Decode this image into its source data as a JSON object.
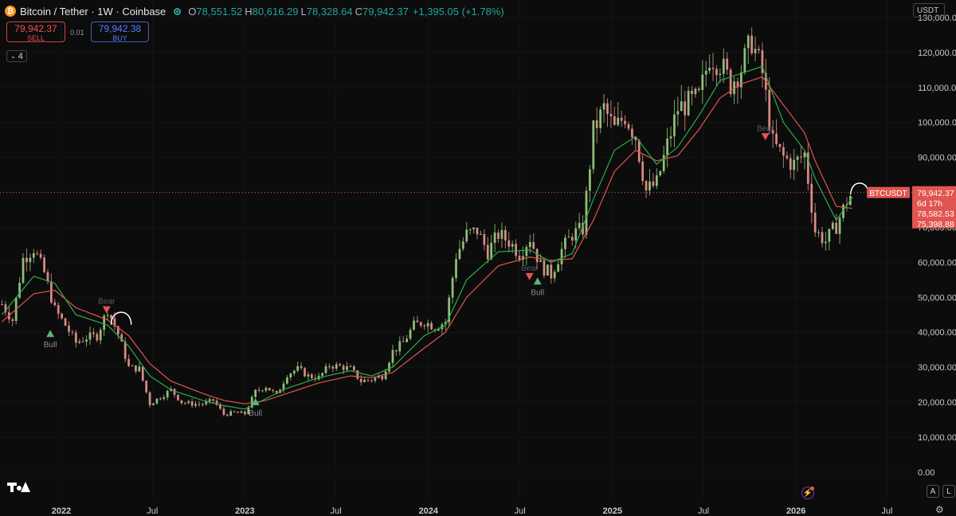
{
  "header": {
    "coin_icon": "bitcoin-icon",
    "symbol": "Bitcoin / Tether · 1W · Coinbase",
    "market_status_icon": "market-open-dot-icon",
    "open_label": "O",
    "open_value": "78,551.52",
    "high_label": "H",
    "high_value": "80,616.29",
    "low_label": "L",
    "low_value": "78,328.64",
    "close_label": "C",
    "close_value": "79,942.37",
    "change": "+1,395.05 (+1.78%)"
  },
  "trade": {
    "sell_price": "79,942.37",
    "sell_label": "SELL",
    "spread": "0.01",
    "buy_price": "79,942.38",
    "buy_label": "BUY"
  },
  "indicators": {
    "count": "4",
    "icon": "chevron-down-icon"
  },
  "price_axis": {
    "currency": "USDT"
  },
  "labels": {
    "symbol_tag": "BTCUSDT",
    "last_price": "79,942.37",
    "countdown": "6d 17h",
    "ma_fast": "78,582.53",
    "ma_slow": "75,398.88",
    "bull": "Bull",
    "bear": "Bear"
  },
  "controls": {
    "auto": "A",
    "log": "L",
    "settings_icon": "gear-icon",
    "logo_icon": "tradingview-logo-icon",
    "alert_icon": "lightning-icon"
  },
  "colors": {
    "up": "#8fbf7a",
    "down": "#d98a84",
    "ma_fast": "#26b04d",
    "ma_slow": "#e0554f",
    "background": "#0c0c0c",
    "price_line": "#ef5350"
  },
  "chart_data": {
    "type": "candlestick",
    "interval": "1W",
    "ylabel": "USDT",
    "ylim": [
      -8000,
      135000
    ],
    "y_ticks": [
      0,
      10000,
      20000,
      30000,
      40000,
      50000,
      60000,
      70000,
      80000,
      90000,
      100000,
      110000,
      120000,
      130000
    ],
    "y_tick_labels": [
      "0.00",
      "10,000.00",
      "20,000.00",
      "30,000.00",
      "40,000.00",
      "50,000.00",
      "60,000.00",
      "70,000.00",
      "80,000.00",
      "90,000.00",
      "100,000.00",
      "110,000.00",
      "120,000.00",
      "130,000.00"
    ],
    "x_tick_labels": [
      "2022",
      "Jul",
      "2023",
      "Jul",
      "2024",
      "Jul",
      "2025",
      "Jul",
      "2026",
      "Jul"
    ],
    "x_tick_dates": [
      "2022-01-01",
      "2022-07-01",
      "2023-01-01",
      "2023-07-01",
      "2024-01-01",
      "2024-07-01",
      "2025-01-01",
      "2025-07-01",
      "2026-01-01",
      "2026-07-01"
    ],
    "x_range": [
      "2021-09-01",
      "2026-08-20"
    ],
    "close_series": [
      [
        "2021-09-05",
        48000
      ],
      [
        "2021-09-26",
        43500
      ],
      [
        "2021-10-17",
        61000
      ],
      [
        "2021-11-07",
        64000
      ],
      [
        "2021-11-28",
        57000
      ],
      [
        "2021-12-19",
        46500
      ],
      [
        "2022-01-09",
        42000
      ],
      [
        "2022-01-30",
        37000
      ],
      [
        "2022-02-20",
        38500
      ],
      [
        "2022-03-13",
        39000
      ],
      [
        "2022-04-03",
        46500
      ],
      [
        "2022-04-24",
        39500
      ],
      [
        "2022-05-15",
        30000
      ],
      [
        "2022-06-05",
        29500
      ],
      [
        "2022-06-26",
        19500
      ],
      [
        "2022-07-17",
        21500
      ],
      [
        "2022-08-07",
        23500
      ],
      [
        "2022-08-28",
        20000
      ],
      [
        "2022-09-18",
        19500
      ],
      [
        "2022-10-09",
        19500
      ],
      [
        "2022-10-30",
        20500
      ],
      [
        "2022-11-20",
        16500
      ],
      [
        "2022-12-11",
        17000
      ],
      [
        "2023-01-01",
        16700
      ],
      [
        "2023-01-22",
        23000
      ],
      [
        "2023-02-12",
        24500
      ],
      [
        "2023-03-05",
        22000
      ],
      [
        "2023-03-26",
        28000
      ],
      [
        "2023-04-16",
        29500
      ],
      [
        "2023-05-07",
        27500
      ],
      [
        "2023-05-28",
        27000
      ],
      [
        "2023-06-18",
        30500
      ],
      [
        "2023-07-09",
        30200
      ],
      [
        "2023-07-30",
        29500
      ],
      [
        "2023-08-20",
        26000
      ],
      [
        "2023-09-10",
        26500
      ],
      [
        "2023-10-01",
        27500
      ],
      [
        "2023-10-22",
        34500
      ],
      [
        "2023-11-12",
        37000
      ],
      [
        "2023-12-03",
        42000
      ],
      [
        "2023-12-24",
        43000
      ],
      [
        "2024-01-14",
        41500
      ],
      [
        "2024-02-04",
        43000
      ],
      [
        "2024-02-25",
        62000
      ],
      [
        "2024-03-17",
        68000
      ],
      [
        "2024-04-07",
        69000
      ],
      [
        "2024-04-28",
        63000
      ],
      [
        "2024-05-19",
        68000
      ],
      [
        "2024-06-09",
        66000
      ],
      [
        "2024-06-30",
        62500
      ],
      [
        "2024-07-21",
        67000
      ],
      [
        "2024-08-11",
        59000
      ],
      [
        "2024-09-01",
        56500
      ],
      [
        "2024-09-22",
        63500
      ],
      [
        "2024-10-13",
        68000
      ],
      [
        "2024-11-03",
        69500
      ],
      [
        "2024-11-24",
        97500
      ],
      [
        "2024-12-15",
        104000
      ],
      [
        "2025-01-05",
        98000
      ],
      [
        "2025-01-26",
        102000
      ],
      [
        "2025-02-16",
        96000
      ],
      [
        "2025-03-09",
        80500
      ],
      [
        "2025-03-30",
        82500
      ],
      [
        "2025-04-20",
        93500
      ],
      [
        "2025-05-11",
        104000
      ],
      [
        "2025-06-01",
        105500
      ],
      [
        "2025-06-22",
        107000
      ],
      [
        "2025-07-13",
        119000
      ],
      [
        "2025-08-03",
        117000
      ],
      [
        "2025-08-24",
        111000
      ],
      [
        "2025-09-14",
        115500
      ],
      [
        "2025-10-05",
        123500
      ],
      [
        "2025-10-26",
        114000
      ],
      [
        "2025-11-16",
        94000
      ],
      [
        "2025-12-07",
        90000
      ],
      [
        "2025-12-28",
        88000
      ],
      [
        "2026-01-18",
        91000
      ],
      [
        "2026-02-08",
        69000
      ],
      [
        "2026-03-01",
        66000
      ],
      [
        "2026-03-22",
        70500
      ],
      [
        "2026-04-12",
        77500
      ],
      [
        "2026-04-23",
        79942.37
      ]
    ],
    "ma_fast_series": [
      [
        "2021-09-05",
        45000
      ],
      [
        "2021-11-07",
        56000
      ],
      [
        "2021-12-19",
        54000
      ],
      [
        "2022-01-30",
        45000
      ],
      [
        "2022-04-03",
        42000
      ],
      [
        "2022-05-15",
        36000
      ],
      [
        "2022-06-26",
        27500
      ],
      [
        "2022-08-07",
        23500
      ],
      [
        "2022-10-09",
        20500
      ],
      [
        "2022-11-20",
        19000
      ],
      [
        "2023-01-01",
        18000
      ],
      [
        "2023-02-12",
        21000
      ],
      [
        "2023-03-26",
        24000
      ],
      [
        "2023-05-28",
        27000
      ],
      [
        "2023-07-30",
        29000
      ],
      [
        "2023-09-10",
        27500
      ],
      [
        "2023-10-22",
        30000
      ],
      [
        "2023-12-24",
        39000
      ],
      [
        "2024-02-04",
        42000
      ],
      [
        "2024-03-17",
        55000
      ],
      [
        "2024-05-19",
        63000
      ],
      [
        "2024-07-21",
        63500
      ],
      [
        "2024-09-01",
        60000
      ],
      [
        "2024-10-13",
        62500
      ],
      [
        "2024-11-24",
        78000
      ],
      [
        "2025-01-05",
        92000
      ],
      [
        "2025-02-16",
        96000
      ],
      [
        "2025-03-30",
        88000
      ],
      [
        "2025-05-11",
        93000
      ],
      [
        "2025-06-22",
        102000
      ],
      [
        "2025-08-03",
        112000
      ],
      [
        "2025-09-14",
        114000
      ],
      [
        "2025-10-26",
        116000
      ],
      [
        "2025-12-07",
        100000
      ],
      [
        "2026-01-18",
        92000
      ],
      [
        "2026-02-08",
        84000
      ],
      [
        "2026-03-22",
        72000
      ],
      [
        "2026-04-23",
        78582.53
      ]
    ],
    "ma_slow_series": [
      [
        "2021-09-05",
        43000
      ],
      [
        "2021-11-07",
        51000
      ],
      [
        "2021-12-19",
        52000
      ],
      [
        "2022-01-30",
        47000
      ],
      [
        "2022-04-03",
        43500
      ],
      [
        "2022-05-15",
        39000
      ],
      [
        "2022-06-26",
        31000
      ],
      [
        "2022-08-07",
        26000
      ],
      [
        "2022-10-09",
        22500
      ],
      [
        "2022-11-20",
        20500
      ],
      [
        "2023-01-01",
        19500
      ],
      [
        "2023-02-12",
        20500
      ],
      [
        "2023-03-26",
        22500
      ],
      [
        "2023-05-28",
        25500
      ],
      [
        "2023-07-30",
        27500
      ],
      [
        "2023-09-10",
        27000
      ],
      [
        "2023-10-22",
        28500
      ],
      [
        "2023-12-24",
        35500
      ],
      [
        "2024-02-04",
        40000
      ],
      [
        "2024-03-17",
        50000
      ],
      [
        "2024-05-19",
        59000
      ],
      [
        "2024-07-21",
        61500
      ],
      [
        "2024-09-01",
        60500
      ],
      [
        "2024-10-13",
        61000
      ],
      [
        "2024-11-24",
        72000
      ],
      [
        "2025-01-05",
        86000
      ],
      [
        "2025-02-16",
        92000
      ],
      [
        "2025-03-30",
        89000
      ],
      [
        "2025-05-11",
        90500
      ],
      [
        "2025-06-22",
        98000
      ],
      [
        "2025-08-03",
        107000
      ],
      [
        "2025-09-14",
        111000
      ],
      [
        "2025-10-26",
        113000
      ],
      [
        "2025-12-07",
        105000
      ],
      [
        "2026-01-18",
        97000
      ],
      [
        "2026-02-08",
        89000
      ],
      [
        "2026-03-22",
        76000
      ],
      [
        "2026-04-23",
        75398.88
      ]
    ],
    "signals": [
      {
        "date": "2021-12-10",
        "type": "bull",
        "price": 40000
      },
      {
        "date": "2022-04-01",
        "type": "bear",
        "price": 46500
      },
      {
        "date": "2023-01-22",
        "type": "bull",
        "price": 20500
      },
      {
        "date": "2024-07-20",
        "type": "bear",
        "price": 56000
      },
      {
        "date": "2024-08-05",
        "type": "bull",
        "price": 55000
      },
      {
        "date": "2025-11-01",
        "type": "bear",
        "price": 96000
      }
    ],
    "annotations": [
      {
        "shape": "arch",
        "date_start": "2022-04-10",
        "date_end": "2022-05-20",
        "price": 45000
      },
      {
        "shape": "arch",
        "date_start": "2026-04-20",
        "date_end": "2026-05-25",
        "price": 82000
      }
    ],
    "last_price": 79942.37
  }
}
